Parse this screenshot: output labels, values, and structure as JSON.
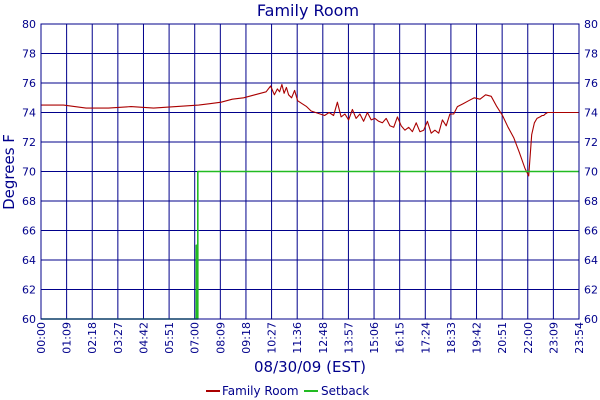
{
  "chart_data": {
    "type": "line",
    "title": "Family Room",
    "xlabel": "08/30/09 (EST)",
    "ylabel": "Degrees F",
    "ylim": [
      60,
      80
    ],
    "yticks": [
      60,
      62,
      64,
      66,
      68,
      70,
      72,
      74,
      76,
      78,
      80
    ],
    "xlim": [
      0,
      1434
    ],
    "xtick_labels": [
      "00:00",
      "01:09",
      "02:18",
      "03:27",
      "04:42",
      "05:51",
      "07:00",
      "08:09",
      "09:18",
      "10:27",
      "11:36",
      "12:48",
      "13:57",
      "15:06",
      "16:15",
      "17:24",
      "18:33",
      "19:42",
      "20:51",
      "22:00",
      "23:09",
      "23:54"
    ],
    "grid": true,
    "legend_position": "bottom",
    "colors": {
      "family_room": "#aa0000",
      "setback": "#22bb22",
      "axes": "#00008b",
      "text": "#00008b"
    },
    "series": [
      {
        "name": "Family Room",
        "x_minutes": [
          0,
          60,
          120,
          180,
          240,
          300,
          360,
          420,
          450,
          480,
          510,
          540,
          570,
          600,
          612,
          622,
          630,
          636,
          642,
          648,
          654,
          660,
          668,
          676,
          684,
          696,
          708,
          720,
          732,
          744,
          756,
          768,
          780,
          790,
          800,
          810,
          820,
          830,
          840,
          850,
          860,
          870,
          880,
          890,
          900,
          910,
          920,
          930,
          940,
          950,
          960,
          970,
          980,
          990,
          1000,
          1010,
          1020,
          1030,
          1040,
          1050,
          1060,
          1070,
          1080,
          1090,
          1100,
          1110,
          1125,
          1140,
          1155,
          1170,
          1185,
          1200,
          1215,
          1230,
          1245,
          1260,
          1275,
          1290,
          1300,
          1308,
          1315,
          1322,
          1330,
          1336,
          1340,
          1344,
          1350,
          1360,
          1370,
          1380,
          1390,
          1400,
          1410,
          1420,
          1434
        ],
        "values": [
          74.5,
          74.5,
          74.3,
          74.3,
          74.4,
          74.3,
          74.4,
          74.5,
          74.6,
          74.7,
          74.9,
          75.0,
          75.2,
          75.4,
          75.8,
          75.2,
          75.6,
          75.4,
          75.9,
          75.3,
          75.7,
          75.2,
          75.0,
          75.5,
          74.8,
          74.6,
          74.4,
          74.1,
          74.0,
          73.9,
          73.8,
          74.0,
          73.8,
          74.7,
          73.7,
          73.9,
          73.5,
          74.2,
          73.6,
          73.9,
          73.4,
          74.0,
          73.5,
          73.6,
          73.4,
          73.3,
          73.6,
          73.1,
          73.0,
          73.7,
          73.1,
          72.8,
          73.0,
          72.7,
          73.3,
          72.7,
          72.8,
          73.4,
          72.6,
          72.8,
          72.6,
          73.5,
          73.1,
          73.9,
          73.9,
          74.4,
          74.6,
          74.8,
          75.0,
          74.9,
          75.2,
          75.1,
          74.4,
          73.8,
          73.0,
          72.3,
          71.3,
          70.2,
          69.7,
          72.5,
          73.3,
          73.6,
          73.7,
          73.8,
          73.8,
          73.9,
          74.0,
          74.0,
          74.0,
          74.0,
          74.0,
          74.0,
          74.0,
          74.0,
          74.0
        ],
        "color": "#aa0000"
      },
      {
        "name": "Setback",
        "x_minutes": [
          0,
          414,
          414,
          416,
          416,
          418,
          418,
          1434
        ],
        "values": [
          60,
          60,
          65,
          65,
          60,
          60,
          70,
          70
        ],
        "color": "#22bb22"
      }
    ]
  }
}
